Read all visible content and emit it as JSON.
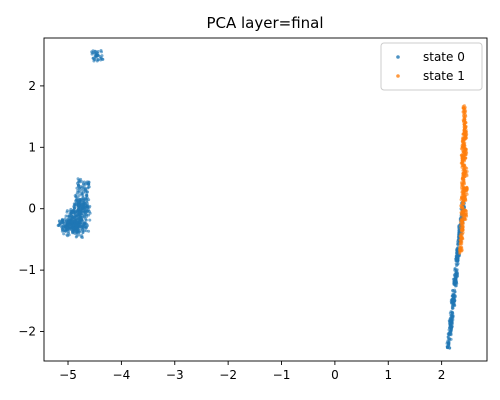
{
  "chart_data": {
    "type": "scatter",
    "title": "PCA layer=final",
    "xlabel": "",
    "ylabel": "",
    "xlim": [
      -5.45,
      2.85
    ],
    "ylim": [
      -2.48,
      2.78
    ],
    "xticks": [
      -5,
      -4,
      -3,
      -2,
      -1,
      0,
      1,
      2
    ],
    "yticks": [
      -2,
      -1,
      0,
      1,
      2
    ],
    "grid": false,
    "legend": {
      "placement": "top-right",
      "entries": [
        "state 0",
        "state 1"
      ]
    },
    "series": [
      {
        "name": "state 0",
        "color": "#1f77b4",
        "points": [
          [
            -4.45,
            2.5
          ],
          [
            -4.46,
            2.49
          ],
          [
            -5.05,
            -0.3
          ],
          [
            -5.02,
            -0.25
          ],
          [
            -4.98,
            -0.32
          ],
          [
            -4.95,
            -0.2
          ],
          [
            -4.92,
            -0.35
          ],
          [
            -4.9,
            -0.28
          ],
          [
            -4.88,
            -0.15
          ],
          [
            -4.86,
            -0.05
          ],
          [
            -4.84,
            -0.3
          ],
          [
            -4.82,
            -0.1
          ],
          [
            -4.8,
            0.0
          ],
          [
            -4.79,
            -0.38
          ],
          [
            -4.78,
            0.08
          ],
          [
            -4.77,
            -0.22
          ],
          [
            -4.76,
            0.15
          ],
          [
            -4.75,
            -0.18
          ],
          [
            -4.74,
            0.25
          ],
          [
            -4.73,
            0.0
          ],
          [
            -4.72,
            0.35
          ],
          [
            -4.72,
            -0.3
          ],
          [
            -4.7,
            0.1
          ],
          [
            -4.7,
            -0.1
          ],
          [
            -4.71,
            0.4
          ],
          [
            -4.69,
            -0.05
          ],
          [
            -5.08,
            -0.28
          ],
          [
            -4.93,
            -0.12
          ],
          [
            -4.85,
            -0.25
          ],
          [
            -4.81,
            0.05
          ],
          [
            2.13,
            -2.2
          ],
          [
            2.15,
            -2.05
          ],
          [
            2.17,
            -1.9
          ],
          [
            2.19,
            -1.75
          ],
          [
            2.21,
            -1.55
          ],
          [
            2.23,
            -1.4
          ],
          [
            2.25,
            -1.2
          ],
          [
            2.27,
            -1.05
          ],
          [
            2.29,
            -0.85
          ],
          [
            2.31,
            -0.7
          ],
          [
            2.33,
            -0.5
          ],
          [
            2.35,
            -0.35
          ],
          [
            2.37,
            -0.2
          ],
          [
            2.39,
            -0.05
          ],
          [
            2.4,
            0.05
          ],
          [
            2.18,
            -1.85
          ],
          [
            2.22,
            -1.5
          ],
          [
            2.26,
            -1.15
          ],
          [
            2.3,
            -0.8
          ],
          [
            2.34,
            -0.45
          ]
        ]
      },
      {
        "name": "state 1",
        "color": "#ff7f0e",
        "points": [
          [
            2.36,
            -0.65
          ],
          [
            2.37,
            -0.5
          ],
          [
            2.38,
            -0.35
          ],
          [
            2.38,
            -0.2
          ],
          [
            2.39,
            -0.05
          ],
          [
            2.39,
            0.1
          ],
          [
            2.4,
            0.25
          ],
          [
            2.4,
            0.4
          ],
          [
            2.41,
            0.55
          ],
          [
            2.41,
            0.7
          ],
          [
            2.41,
            0.85
          ],
          [
            2.42,
            1.0
          ],
          [
            2.42,
            1.15
          ],
          [
            2.43,
            1.3
          ],
          [
            2.43,
            1.45
          ],
          [
            2.42,
            1.6
          ],
          [
            2.44,
            1.2
          ],
          [
            2.44,
            0.9
          ],
          [
            2.45,
            0.6
          ],
          [
            2.45,
            0.3
          ],
          [
            2.39,
            0.8
          ],
          [
            2.4,
            1.05
          ],
          [
            2.43,
            0.2
          ],
          [
            2.44,
            -0.1
          ]
        ]
      }
    ]
  }
}
